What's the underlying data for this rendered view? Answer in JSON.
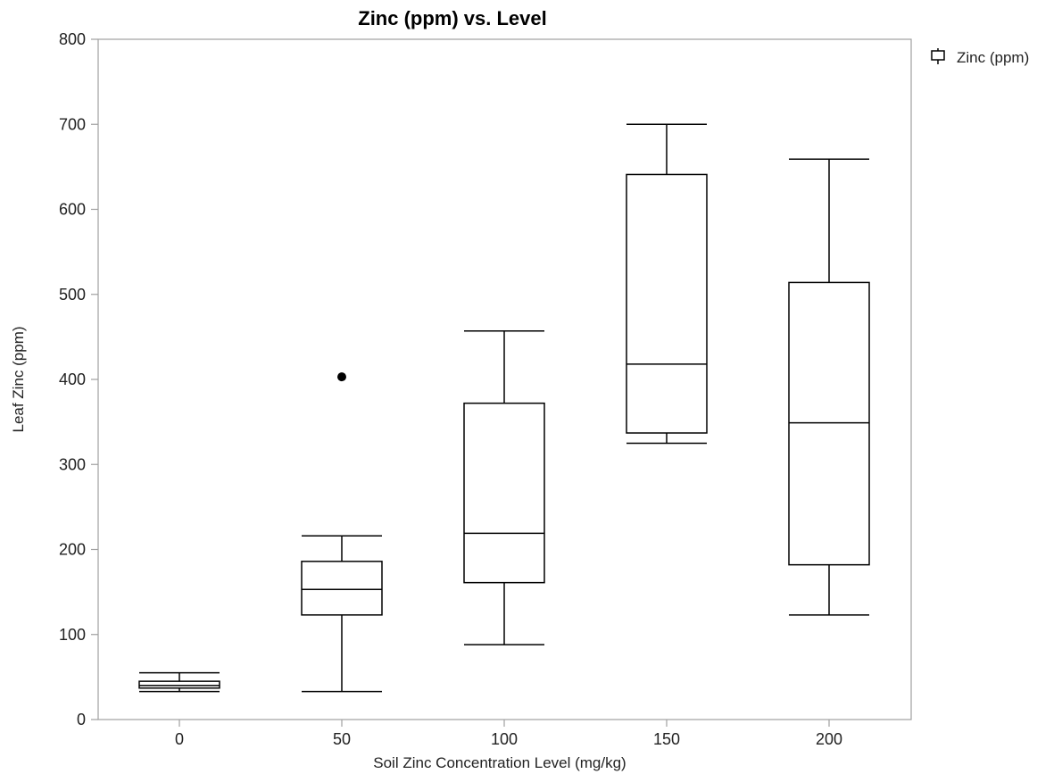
{
  "chart_data": {
    "type": "box",
    "title": "Zinc (ppm) vs. Level",
    "xlabel": "Soil Zinc Concentration Level (mg/kg)",
    "ylabel": "Leaf Zinc (ppm)",
    "ylim": [
      0,
      800
    ],
    "yticks": [
      0,
      100,
      200,
      300,
      400,
      500,
      600,
      700,
      800
    ],
    "categories": [
      "0",
      "50",
      "100",
      "150",
      "200"
    ],
    "series": [
      {
        "name": "Zinc (ppm)",
        "boxes": [
          {
            "category": "0",
            "whisker_low": 33,
            "q1": 37,
            "median": 40,
            "q3": 45,
            "whisker_high": 55,
            "outliers": []
          },
          {
            "category": "50",
            "whisker_low": 33,
            "q1": 123,
            "median": 153,
            "q3": 186,
            "whisker_high": 216,
            "outliers": [
              403
            ]
          },
          {
            "category": "100",
            "whisker_low": 88,
            "q1": 161,
            "median": 219,
            "q3": 372,
            "whisker_high": 457,
            "outliers": []
          },
          {
            "category": "150",
            "whisker_low": 325,
            "q1": 337,
            "median": 418,
            "q3": 641,
            "whisker_high": 700,
            "outliers": []
          },
          {
            "category": "200",
            "whisker_low": 123,
            "q1": 182,
            "median": 349,
            "q3": 514,
            "whisker_high": 659,
            "outliers": []
          }
        ]
      }
    ],
    "legend": {
      "position": "top-right",
      "entries": [
        "Zinc (ppm)"
      ]
    },
    "grid": false,
    "colors": {
      "stroke": "#000000",
      "frame": "#a0a0a0",
      "outlier": "#000000"
    }
  }
}
